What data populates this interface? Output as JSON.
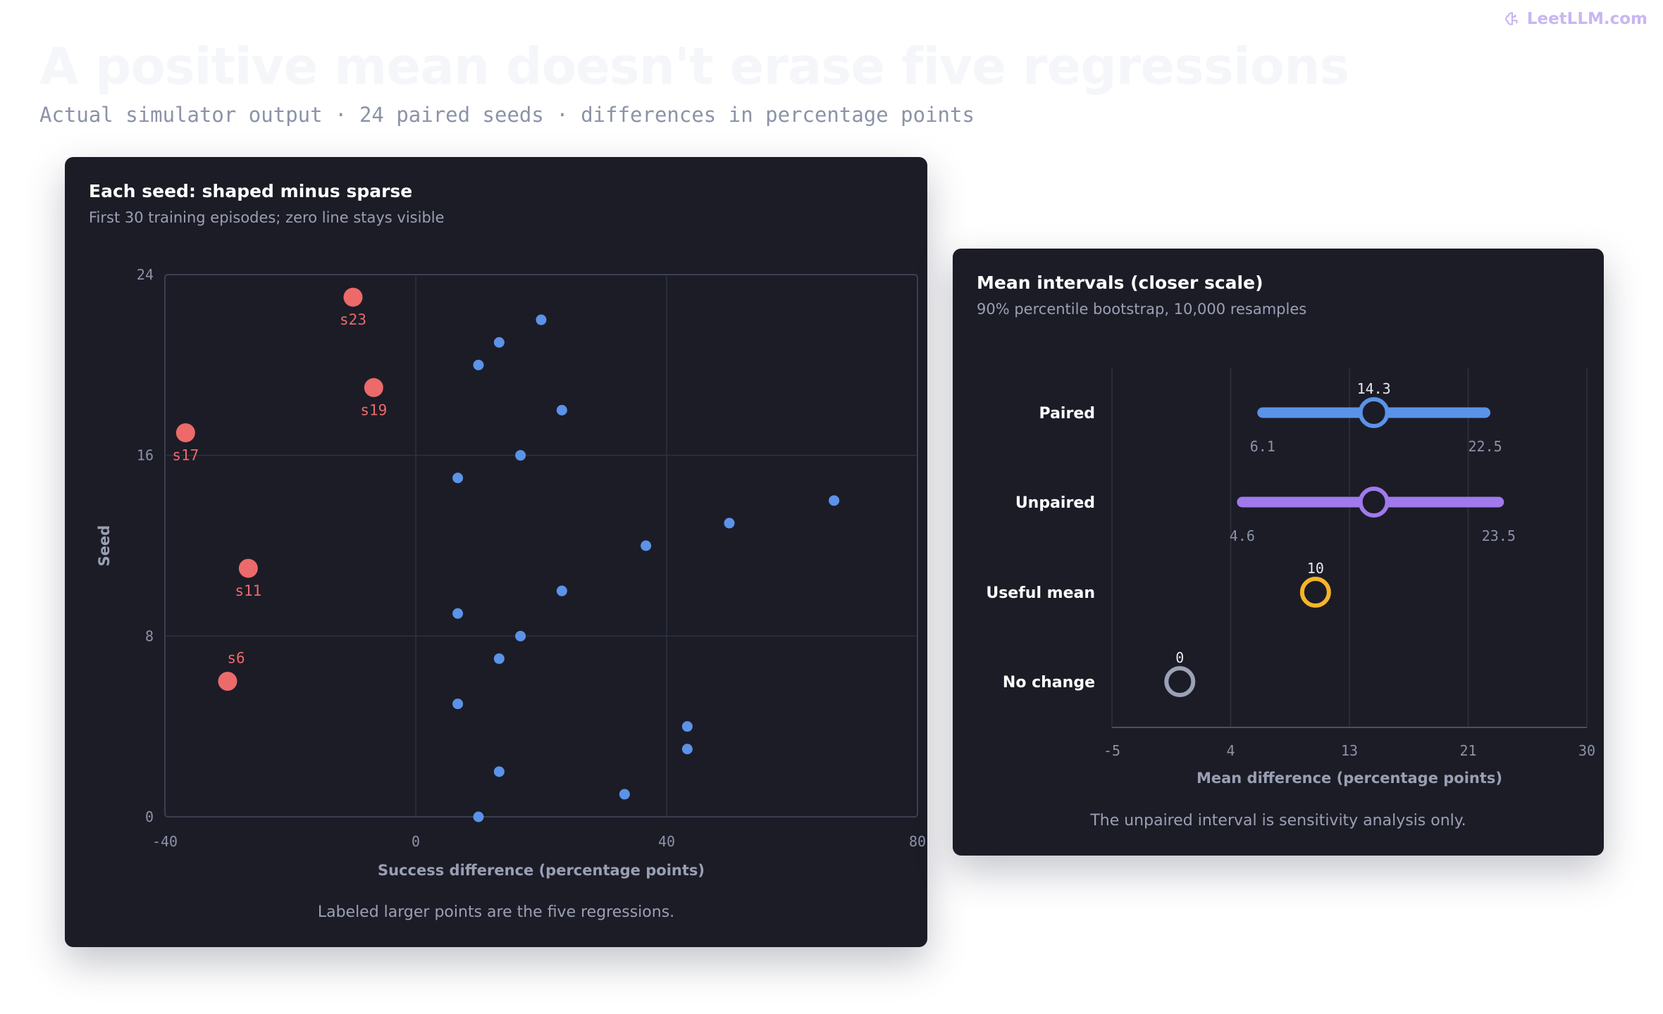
{
  "brand": {
    "text": "LeetLLM.com",
    "icon": "brain-logo-icon"
  },
  "page": {
    "title": "A positive mean doesn't erase five regressions",
    "subtitle": "Actual simulator output · 24 paired seeds · differences in percentage points"
  },
  "colors": {
    "card_bg": "#1c1c27",
    "positive": "#5b93e8",
    "regression": "#ec6a6a",
    "paired": "#5b93e8",
    "unpaired": "#a07aed",
    "useful_mean": "#f4b52a",
    "no_change": "#9aa2b4"
  },
  "chart_data": [
    {
      "type": "scatter",
      "title": "Each seed: shaped minus sparse",
      "subtitle": "First 30 training episodes; zero line stays visible",
      "xlabel": "Success difference (percentage points)",
      "ylabel": "Seed",
      "xlim": [
        -40,
        80
      ],
      "ylim": [
        0,
        24
      ],
      "xticks": [
        "-40",
        "0",
        "40",
        "80"
      ],
      "yticks": [
        "0",
        "8",
        "16",
        "24"
      ],
      "grid": true,
      "footnote": "Labeled larger points are the five regressions.",
      "points": [
        {
          "seed": 0,
          "x": 10,
          "regression": false,
          "label": ""
        },
        {
          "seed": 1,
          "x": 33.3,
          "regression": false,
          "label": ""
        },
        {
          "seed": 2,
          "x": 13.3,
          "regression": false,
          "label": ""
        },
        {
          "seed": 3,
          "x": 43.3,
          "regression": false,
          "label": ""
        },
        {
          "seed": 4,
          "x": 43.3,
          "regression": false,
          "label": ""
        },
        {
          "seed": 5,
          "x": 6.7,
          "regression": false,
          "label": ""
        },
        {
          "seed": 6,
          "x": -30,
          "regression": true,
          "label": "s6"
        },
        {
          "seed": 7,
          "x": 13.3,
          "regression": false,
          "label": ""
        },
        {
          "seed": 8,
          "x": 16.7,
          "regression": false,
          "label": ""
        },
        {
          "seed": 9,
          "x": 6.7,
          "regression": false,
          "label": ""
        },
        {
          "seed": 10,
          "x": 23.3,
          "regression": false,
          "label": ""
        },
        {
          "seed": 11,
          "x": -26.7,
          "regression": true,
          "label": "s11"
        },
        {
          "seed": 12,
          "x": 36.7,
          "regression": false,
          "label": ""
        },
        {
          "seed": 13,
          "x": 50,
          "regression": false,
          "label": ""
        },
        {
          "seed": 14,
          "x": 66.7,
          "regression": false,
          "label": ""
        },
        {
          "seed": 15,
          "x": 6.7,
          "regression": false,
          "label": ""
        },
        {
          "seed": 16,
          "x": 16.7,
          "regression": false,
          "label": ""
        },
        {
          "seed": 17,
          "x": -36.7,
          "regression": true,
          "label": "s17"
        },
        {
          "seed": 18,
          "x": 23.3,
          "regression": false,
          "label": ""
        },
        {
          "seed": 19,
          "x": -6.7,
          "regression": true,
          "label": "s19"
        },
        {
          "seed": 20,
          "x": 10,
          "regression": false,
          "label": ""
        },
        {
          "seed": 21,
          "x": 13.3,
          "regression": false,
          "label": ""
        },
        {
          "seed": 22,
          "x": 20,
          "regression": false,
          "label": ""
        },
        {
          "seed": 23,
          "x": -10,
          "regression": true,
          "label": "s23"
        }
      ]
    },
    {
      "type": "interval",
      "title": "Mean intervals (closer scale)",
      "subtitle": "90% percentile bootstrap, 10,000 resamples",
      "xlabel": "Mean difference (percentage points)",
      "xlim": [
        -5,
        30
      ],
      "xticks": [
        {
          "value": -5,
          "label": "-5"
        },
        {
          "value": 3.75,
          "label": "4"
        },
        {
          "value": 12.5,
          "label": "13"
        },
        {
          "value": 21.25,
          "label": "21"
        },
        {
          "value": 30,
          "label": "30"
        }
      ],
      "grid": true,
      "footnote": "The unpaired interval is sensitivity analysis only.",
      "rows": [
        {
          "name": "Paired",
          "mean": 14.3,
          "mean_label": "14.3",
          "low": 6.1,
          "low_label": "6.1",
          "high": 22.5,
          "high_label": "22.5",
          "color_key": "paired"
        },
        {
          "name": "Unpaired",
          "mean": 14.3,
          "mean_label": "",
          "low": 4.6,
          "low_label": "4.6",
          "high": 23.5,
          "high_label": "23.5",
          "color_key": "unpaired"
        },
        {
          "name": "Useful mean",
          "mean": 10,
          "mean_label": "10",
          "color_key": "useful_mean"
        },
        {
          "name": "No change",
          "mean": 0,
          "mean_label": "0",
          "color_key": "no_change"
        }
      ]
    }
  ]
}
